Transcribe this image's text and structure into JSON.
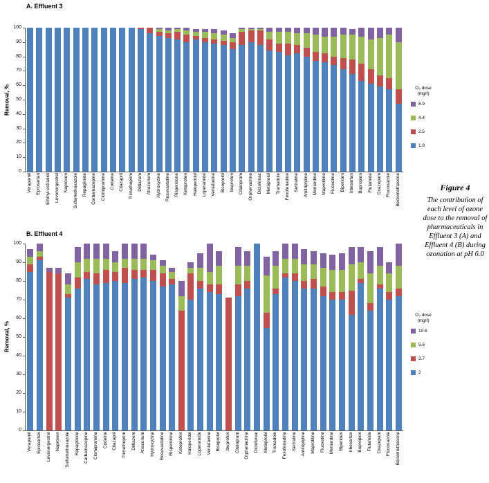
{
  "page": {
    "background": "#ffffff"
  },
  "figure_caption": {
    "title": "Figure 4",
    "text": "The contribution of each level of ozone dose to the removal of pharmaceuticals in Effluent 3 (A) and Effluent 4 (B) during ozonation at pH 6.0"
  },
  "chart_data": [
    {
      "type": "bar",
      "stacked": true,
      "title": "A. Effluent 3",
      "ylabel": "Removal, %",
      "ylim": [
        0,
        100
      ],
      "yticks": [
        0,
        10,
        20,
        30,
        40,
        50,
        60,
        70,
        80,
        90,
        100
      ],
      "grid": false,
      "legend": {
        "position": "right",
        "title_line1": "O₃ dose",
        "title_line2": "(mg/ℓ)",
        "items": [
          {
            "label": "8.9",
            "color": "#8064A2"
          },
          {
            "label": "4.4",
            "color": "#9BBB59"
          },
          {
            "label": "2.5",
            "color": "#C0504D"
          },
          {
            "label": "1.8",
            "color": "#4F81BD"
          }
        ]
      },
      "categories": [
        "Verapamil",
        "Eprosartan",
        "Ethinyl estradiol",
        "Levonorgestrel",
        "Naproxen",
        "Sulfamethoxazole",
        "Repaglinide",
        "Carbamazepine",
        "Clomipramine",
        "Codeine",
        "Cilazapril",
        "Trimethoprim",
        "Diltiazem",
        "Atracurium",
        "Hydroxyzine",
        "Rosuvastatine",
        "Risperidone",
        "Ketoprofen",
        "Haloperidol",
        "Loperamide",
        "Venlafaxine",
        "Bisoprolol",
        "Ibuprofen",
        "Citalopram",
        "Orphenadrine",
        "Diclofenac",
        "Metoprolol",
        "Tramadole",
        "Fexofenadine",
        "Sertraline",
        "Amitriptyline",
        "Memantine",
        "Maprotiline",
        "Fluoxetine",
        "Biperiden",
        "Irbesartan",
        "Bupropion",
        "Flutamide",
        "Oxazepam",
        "Fluconazole",
        "Beclomethasone"
      ],
      "series": [
        {
          "name": "1.8",
          "color": "#4F81BD",
          "values": [
            100,
            100,
            100,
            100,
            100,
            100,
            100,
            100,
            100,
            100,
            100,
            100,
            99,
            96,
            94,
            93,
            92,
            90,
            92,
            90,
            89,
            88,
            85,
            88,
            90,
            88,
            84,
            83,
            81,
            82,
            80,
            77,
            76,
            74,
            71,
            68,
            63,
            61,
            59,
            57,
            47
          ]
        },
        {
          "name": "2.5",
          "color": "#C0504D",
          "values": [
            0,
            0,
            0,
            0,
            0,
            0,
            0,
            0,
            0,
            0,
            0,
            0,
            1,
            4,
            3,
            3,
            5,
            5,
            2,
            3,
            3,
            3,
            5,
            9,
            8,
            10,
            8,
            6,
            8,
            6,
            6,
            6,
            6,
            6,
            8,
            10,
            12,
            10,
            8,
            8,
            10
          ]
        },
        {
          "name": "4.4",
          "color": "#9BBB59",
          "values": [
            0,
            0,
            0,
            0,
            0,
            0,
            0,
            0,
            0,
            0,
            0,
            0,
            0,
            0,
            2,
            2,
            2,
            3,
            3,
            4,
            4,
            4,
            3,
            2,
            1,
            1,
            5,
            8,
            8,
            8,
            10,
            12,
            12,
            14,
            16,
            17,
            19,
            21,
            26,
            30,
            33
          ]
        },
        {
          "name": "8.9",
          "color": "#8064A2",
          "values": [
            0,
            0,
            0,
            0,
            0,
            0,
            0,
            0,
            0,
            0,
            0,
            0,
            0,
            0,
            1,
            2,
            1,
            2,
            2,
            2,
            3,
            3,
            3,
            1,
            1,
            1,
            3,
            3,
            3,
            4,
            4,
            5,
            6,
            6,
            5,
            4,
            6,
            8,
            7,
            5,
            10
          ]
        }
      ]
    },
    {
      "type": "bar",
      "stacked": true,
      "title": "B. Effluent 4",
      "ylabel": "Removal, %",
      "ylim": [
        0,
        100
      ],
      "yticks": [
        0,
        10,
        20,
        30,
        40,
        50,
        60,
        70,
        80,
        90,
        100
      ],
      "grid": false,
      "legend": {
        "position": "right",
        "title_line1": "O₃ dose",
        "title_line2": "(mg/ℓ)",
        "items": [
          {
            "label": "10.6",
            "color": "#8064A2"
          },
          {
            "label": "5.6",
            "color": "#9BBB59"
          },
          {
            "label": "3.7",
            "color": "#C0504D"
          },
          {
            "label": "2",
            "color": "#4F81BD"
          }
        ]
      },
      "categories": [
        "Verapamil",
        "Eprosartan",
        "Levonorgestrel",
        "Naproxen",
        "Sulfamethoxazole",
        "Repaglinide",
        "Carbamazepine",
        "Clomipramine",
        "Codeine",
        "Cilazapril",
        "Trimethoprim",
        "Diltiazem",
        "Atracurium",
        "Hydroxyzine",
        "Rosuvastatine",
        "Risperidone",
        "Ketoprofen",
        "Haloperidol",
        "Loperamide",
        "Venlafaxine",
        "Bisoprolol",
        "Ibuprofen",
        "Citalopram",
        "Orphenadrine",
        "Diclofenac",
        "Metoprolol",
        "Tramadole",
        "Fexofenadine",
        "Sertraline",
        "Amitriptyline",
        "Maprotiline",
        "Fluoxetine",
        "Memantine",
        "Biperiden",
        "Irbesartan",
        "Bupropion",
        "Flutamide",
        "Oxazepam",
        "Fluconazole",
        "Beclomethasone"
      ],
      "series": [
        {
          "name": "2",
          "color": "#4F81BD",
          "values": [
            85,
            91,
            0,
            0,
            71,
            76,
            81,
            78,
            79,
            80,
            79,
            81,
            82,
            80,
            77,
            78,
            0,
            70,
            76,
            74,
            73,
            0,
            72,
            76,
            100,
            55,
            73,
            82,
            80,
            76,
            76,
            72,
            70,
            70,
            62,
            79,
            64,
            76,
            70,
            72
          ]
        },
        {
          "name": "3.7",
          "color": "#C0504D",
          "values": [
            4,
            2,
            85,
            84,
            2,
            6,
            4,
            6,
            7,
            5,
            8,
            5,
            4,
            6,
            7,
            3,
            64,
            14,
            4,
            4,
            5,
            71,
            6,
            4,
            0,
            8,
            3,
            2,
            4,
            4,
            5,
            5,
            4,
            4,
            13,
            2,
            4,
            2,
            4,
            4
          ]
        },
        {
          "name": "5.6",
          "color": "#9BBB59",
          "values": [
            4,
            3,
            0,
            0,
            5,
            8,
            7,
            8,
            6,
            5,
            5,
            6,
            6,
            5,
            4,
            4,
            8,
            3,
            7,
            7,
            10,
            0,
            10,
            8,
            0,
            20,
            12,
            8,
            8,
            9,
            8,
            10,
            12,
            12,
            14,
            9,
            16,
            10,
            10,
            12
          ]
        },
        {
          "name": "10.6",
          "color": "#8064A2",
          "values": [
            4,
            4,
            2,
            3,
            6,
            8,
            8,
            8,
            8,
            6,
            8,
            8,
            8,
            3,
            3,
            2,
            8,
            3,
            8,
            15,
            8,
            0,
            10,
            8,
            0,
            10,
            8,
            8,
            8,
            8,
            7,
            8,
            8,
            9,
            9,
            8,
            12,
            10,
            6,
            12
          ]
        }
      ]
    }
  ]
}
